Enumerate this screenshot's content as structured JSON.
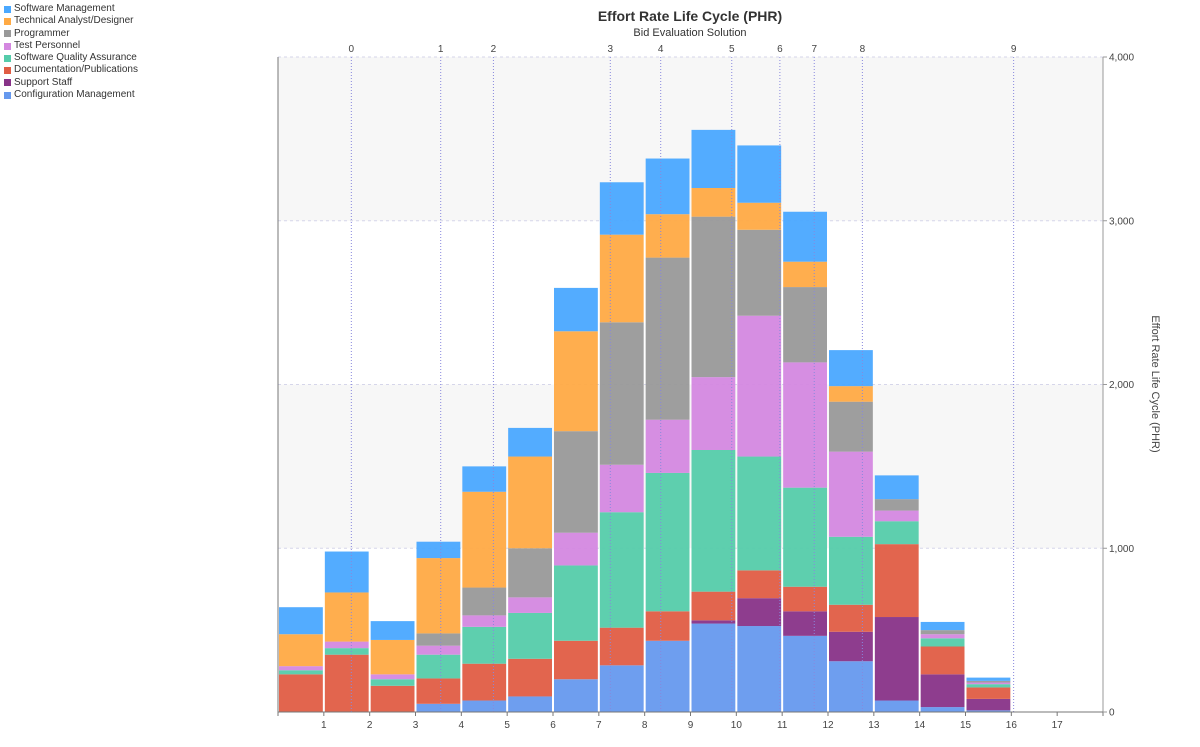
{
  "chart_data": {
    "type": "bar",
    "stacked": true,
    "title": "Effort Rate Life Cycle (PHR)",
    "subtitle": "Bid Evaluation Solution",
    "xlabel": "",
    "ylabel": "Effort Rate Life Cycle (PHR)",
    "x_ticks": [
      "1",
      "2",
      "3",
      "4",
      "5",
      "6",
      "7",
      "8",
      "9",
      "10",
      "11",
      "12",
      "13",
      "14",
      "15",
      "16",
      "17"
    ],
    "x_range": [
      0,
      18
    ],
    "ylim": [
      0,
      4000
    ],
    "y_ticks": [
      0,
      1000,
      2000,
      3000,
      4000
    ],
    "y_tick_labels": [
      "0",
      "1,000",
      "2,000",
      "3,000",
      "4,000"
    ],
    "y_axis_position": "right",
    "grid": true,
    "legend_position": "top-left",
    "milestones": [
      {
        "label": "0",
        "x": 1.6
      },
      {
        "label": "1",
        "x": 3.55
      },
      {
        "label": "2",
        "x": 4.7
      },
      {
        "label": "3",
        "x": 7.25
      },
      {
        "label": "4",
        "x": 8.35
      },
      {
        "label": "5",
        "x": 9.9
      },
      {
        "label": "6",
        "x": 10.95
      },
      {
        "label": "7",
        "x": 11.7
      },
      {
        "label": "8",
        "x": 12.75
      },
      {
        "label": "9",
        "x": 16.05
      }
    ],
    "categories": [
      "1",
      "2",
      "3",
      "4",
      "5",
      "6",
      "7",
      "8",
      "9",
      "10",
      "11",
      "12",
      "13",
      "14",
      "15",
      "16"
    ],
    "series": [
      {
        "name": "Configuration Management",
        "color": "#6699ee",
        "values": [
          0,
          0,
          0,
          50,
          70,
          95,
          200,
          285,
          435,
          540,
          525,
          465,
          310,
          70,
          30,
          10
        ]
      },
      {
        "name": "Support Staff",
        "color": "#883388",
        "values": [
          0,
          0,
          0,
          0,
          0,
          0,
          0,
          0,
          0,
          20,
          170,
          150,
          180,
          510,
          200,
          70
        ]
      },
      {
        "name": "Documentation/Publications",
        "color": "#e05d44",
        "values": [
          230,
          350,
          160,
          155,
          225,
          230,
          235,
          230,
          180,
          175,
          170,
          150,
          165,
          445,
          170,
          70
        ]
      },
      {
        "name": "Software Quality Assurance",
        "color": "#55ccaa",
        "values": [
          25,
          40,
          40,
          145,
          225,
          280,
          460,
          705,
          845,
          865,
          695,
          605,
          415,
          140,
          50,
          20
        ]
      },
      {
        "name": "Test Personnel",
        "color": "#d488e0",
        "values": [
          25,
          40,
          30,
          55,
          70,
          95,
          200,
          290,
          325,
          445,
          860,
          765,
          520,
          65,
          25,
          10
        ]
      },
      {
        "name": "Programmer",
        "color": "#999999",
        "values": [
          0,
          0,
          0,
          75,
          170,
          300,
          620,
          870,
          990,
          980,
          525,
          460,
          305,
          70,
          25,
          10
        ]
      },
      {
        "name": "Technical Analyst/Designer",
        "color": "#ffaa44",
        "values": [
          195,
          300,
          210,
          460,
          585,
          560,
          610,
          535,
          265,
          175,
          165,
          155,
          95,
          0,
          0,
          0
        ]
      },
      {
        "name": "Software Management",
        "color": "#4aa8ff",
        "values": [
          165,
          250,
          115,
          100,
          155,
          175,
          265,
          320,
          340,
          355,
          350,
          305,
          220,
          145,
          50,
          20
        ]
      }
    ]
  },
  "legend": {
    "items": [
      {
        "label": "Software Management",
        "color": "#4aa8ff"
      },
      {
        "label": "Technical Analyst/Designer",
        "color": "#ffaa44"
      },
      {
        "label": "Programmer",
        "color": "#999999"
      },
      {
        "label": "Test Personnel",
        "color": "#d488e0"
      },
      {
        "label": "Software Quality Assurance",
        "color": "#55ccaa"
      },
      {
        "label": "Documentation/Publications",
        "color": "#e05d44"
      },
      {
        "label": "Support Staff",
        "color": "#883388"
      },
      {
        "label": "Configuration Management",
        "color": "#6699ee"
      }
    ]
  }
}
